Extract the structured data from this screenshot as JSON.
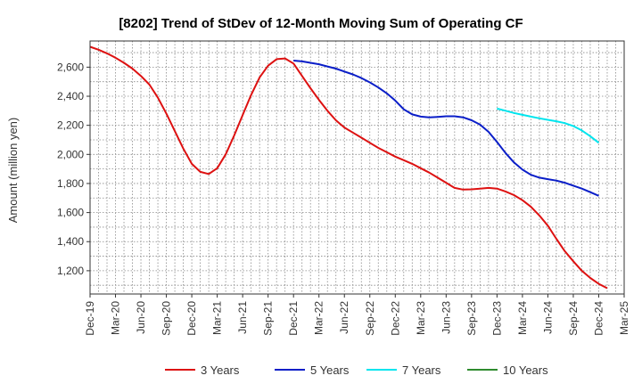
{
  "chart_data": {
    "type": "line",
    "title": "[8202]  Trend of StDev of 12-Month Moving Sum of Operating CF",
    "ylabel": "Amount (million yen)",
    "xlabel": "",
    "ylim": [
      1040,
      2780
    ],
    "yticks": [
      1200,
      1400,
      1600,
      1800,
      2000,
      2200,
      2400,
      2600
    ],
    "ytick_labels": [
      "1,200",
      "1,400",
      "1,600",
      "1,800",
      "2,000",
      "2,200",
      "2,400",
      "2,600"
    ],
    "x_range": [
      "2019-12",
      "2025-03"
    ],
    "x_ticks": [
      "Dec-19",
      "Mar-20",
      "Jun-20",
      "Sep-20",
      "Dec-20",
      "Mar-21",
      "Jun-21",
      "Sep-21",
      "Dec-21",
      "Mar-22",
      "Jun-22",
      "Sep-22",
      "Dec-22",
      "Mar-23",
      "Jun-23",
      "Sep-23",
      "Dec-23",
      "Mar-24",
      "Jun-24",
      "Sep-24",
      "Dec-24",
      "Mar-25"
    ],
    "grid": true,
    "legend_position": "bottom",
    "series": [
      {
        "name": "3 Years",
        "color": "#dd1111",
        "points": [
          [
            "2019-12",
            2740
          ],
          [
            "2020-01",
            2720
          ],
          [
            "2020-02",
            2695
          ],
          [
            "2020-03",
            2665
          ],
          [
            "2020-04",
            2630
          ],
          [
            "2020-05",
            2590
          ],
          [
            "2020-06",
            2540
          ],
          [
            "2020-07",
            2480
          ],
          [
            "2020-08",
            2390
          ],
          [
            "2020-09",
            2280
          ],
          [
            "2020-10",
            2160
          ],
          [
            "2020-11",
            2040
          ],
          [
            "2020-12",
            1935
          ],
          [
            "2021-01",
            1880
          ],
          [
            "2021-02",
            1865
          ],
          [
            "2021-03",
            1905
          ],
          [
            "2021-04",
            2000
          ],
          [
            "2021-05",
            2130
          ],
          [
            "2021-06",
            2270
          ],
          [
            "2021-07",
            2410
          ],
          [
            "2021-08",
            2530
          ],
          [
            "2021-09",
            2610
          ],
          [
            "2021-10",
            2655
          ],
          [
            "2021-11",
            2660
          ],
          [
            "2021-12",
            2625
          ],
          [
            "2022-01",
            2540
          ],
          [
            "2022-02",
            2455
          ],
          [
            "2022-03",
            2375
          ],
          [
            "2022-04",
            2300
          ],
          [
            "2022-05",
            2235
          ],
          [
            "2022-06",
            2185
          ],
          [
            "2022-07",
            2150
          ],
          [
            "2022-08",
            2115
          ],
          [
            "2022-09",
            2080
          ],
          [
            "2022-10",
            2045
          ],
          [
            "2022-11",
            2015
          ],
          [
            "2022-12",
            1985
          ],
          [
            "2023-01",
            1960
          ],
          [
            "2023-02",
            1935
          ],
          [
            "2023-03",
            1905
          ],
          [
            "2023-04",
            1875
          ],
          [
            "2023-05",
            1840
          ],
          [
            "2023-06",
            1805
          ],
          [
            "2023-07",
            1770
          ],
          [
            "2023-08",
            1758
          ],
          [
            "2023-09",
            1760
          ],
          [
            "2023-10",
            1765
          ],
          [
            "2023-11",
            1770
          ],
          [
            "2023-12",
            1765
          ],
          [
            "2024-01",
            1745
          ],
          [
            "2024-02",
            1720
          ],
          [
            "2024-03",
            1685
          ],
          [
            "2024-04",
            1640
          ],
          [
            "2024-05",
            1580
          ],
          [
            "2024-06",
            1510
          ],
          [
            "2024-07",
            1420
          ],
          [
            "2024-08",
            1335
          ],
          [
            "2024-09",
            1265
          ],
          [
            "2024-10",
            1200
          ],
          [
            "2024-11",
            1150
          ],
          [
            "2024-12",
            1110
          ],
          [
            "2025-01",
            1080
          ]
        ]
      },
      {
        "name": "5 Years",
        "color": "#0a1ec8",
        "points": [
          [
            "2021-12",
            2645
          ],
          [
            "2022-01",
            2640
          ],
          [
            "2022-02",
            2630
          ],
          [
            "2022-03",
            2620
          ],
          [
            "2022-04",
            2605
          ],
          [
            "2022-05",
            2590
          ],
          [
            "2022-06",
            2570
          ],
          [
            "2022-07",
            2550
          ],
          [
            "2022-08",
            2525
          ],
          [
            "2022-09",
            2495
          ],
          [
            "2022-10",
            2460
          ],
          [
            "2022-11",
            2420
          ],
          [
            "2022-12",
            2370
          ],
          [
            "2023-01",
            2310
          ],
          [
            "2023-02",
            2275
          ],
          [
            "2023-03",
            2260
          ],
          [
            "2023-04",
            2255
          ],
          [
            "2023-05",
            2258
          ],
          [
            "2023-06",
            2262
          ],
          [
            "2023-07",
            2262
          ],
          [
            "2023-08",
            2255
          ],
          [
            "2023-09",
            2235
          ],
          [
            "2023-10",
            2205
          ],
          [
            "2023-11",
            2155
          ],
          [
            "2023-12",
            2085
          ],
          [
            "2024-01",
            2010
          ],
          [
            "2024-02",
            1945
          ],
          [
            "2024-03",
            1895
          ],
          [
            "2024-04",
            1860
          ],
          [
            "2024-05",
            1840
          ],
          [
            "2024-06",
            1830
          ],
          [
            "2024-07",
            1820
          ],
          [
            "2024-08",
            1805
          ],
          [
            "2024-09",
            1785
          ],
          [
            "2024-10",
            1765
          ],
          [
            "2024-11",
            1740
          ],
          [
            "2024-12",
            1715
          ]
        ]
      },
      {
        "name": "7 Years",
        "color": "#00e5ee",
        "points": [
          [
            "2023-12",
            2315
          ],
          [
            "2024-01",
            2300
          ],
          [
            "2024-02",
            2285
          ],
          [
            "2024-03",
            2272
          ],
          [
            "2024-04",
            2260
          ],
          [
            "2024-05",
            2248
          ],
          [
            "2024-06",
            2238
          ],
          [
            "2024-07",
            2228
          ],
          [
            "2024-08",
            2215
          ],
          [
            "2024-09",
            2195
          ],
          [
            "2024-10",
            2165
          ],
          [
            "2024-11",
            2125
          ],
          [
            "2024-12",
            2080
          ]
        ]
      },
      {
        "name": "10 Years",
        "color": "#2e8b2e",
        "points": []
      }
    ]
  }
}
